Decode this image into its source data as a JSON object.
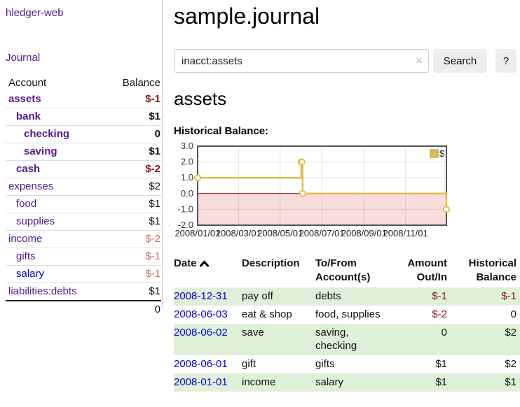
{
  "app": {
    "brand": "hledger-web",
    "nav_journal": "Journal"
  },
  "sidebar": {
    "headers": {
      "account": "Account",
      "balance": "Balance"
    },
    "accounts": [
      {
        "name": "assets",
        "indent": 1,
        "bold": true,
        "name_color": "purple",
        "balance": "$-1",
        "balance_color": "neg"
      },
      {
        "name": "bank",
        "indent": 2,
        "bold": true,
        "name_color": "purple",
        "balance": "$1",
        "balance_color": "black"
      },
      {
        "name": "checking",
        "indent": 3,
        "bold": true,
        "name_color": "purple",
        "balance": "0",
        "balance_color": "black"
      },
      {
        "name": "saving",
        "indent": 3,
        "bold": true,
        "name_color": "purple",
        "balance": "$1",
        "balance_color": "black"
      },
      {
        "name": "cash",
        "indent": 2,
        "bold": true,
        "name_color": "purple",
        "balance": "$-2",
        "balance_color": "neg"
      },
      {
        "name": "expenses",
        "indent": 1,
        "bold": false,
        "name_color": "purple",
        "balance": "$2",
        "balance_color": "black"
      },
      {
        "name": "food",
        "indent": 2,
        "bold": false,
        "name_color": "purple",
        "balance": "$1",
        "balance_color": "black"
      },
      {
        "name": "supplies",
        "indent": 2,
        "bold": false,
        "name_color": "purple",
        "balance": "$1",
        "balance_color": "black"
      },
      {
        "name": "income",
        "indent": 1,
        "bold": false,
        "name_color": "purple",
        "balance": "$-2",
        "balance_color": "negmuted"
      },
      {
        "name": "gifts",
        "indent": 2,
        "bold": false,
        "name_color": "purple",
        "balance": "$-1",
        "balance_color": "negmuted"
      },
      {
        "name": "salary",
        "indent": 2,
        "bold": false,
        "name_color": "blue",
        "balance": "$-1",
        "balance_color": "negmuted"
      },
      {
        "name": "liabilities:debts",
        "indent": 1,
        "bold": false,
        "name_color": "purple",
        "balance": "$1",
        "balance_color": "black"
      }
    ],
    "total": "0"
  },
  "header": {
    "title": "sample.journal"
  },
  "search": {
    "value": "inacct:assets",
    "clear_icon": "×",
    "button": "Search",
    "help_button": "?"
  },
  "account_page": {
    "heading": "assets",
    "chart_label": "Historical Balance:"
  },
  "chart_data": {
    "type": "line",
    "step": true,
    "title": "Historical Balance:",
    "legend": "$",
    "legend_position": "top-right",
    "x_range": [
      "2008-01-01",
      "2008-12-31"
    ],
    "x_ticks": [
      "2008/01/01",
      "2008/03/01",
      "2008/05/01",
      "2008/07/01",
      "2008/09/01",
      "2008/11/01"
    ],
    "y_ticks": [
      3.0,
      2.0,
      1.0,
      0.0,
      -1.0,
      -2.0
    ],
    "ylim": [
      -2,
      3
    ],
    "grid": true,
    "series": [
      {
        "name": "$",
        "color": "#e2bd4c",
        "points": [
          {
            "date": "2008-01-01",
            "value": 1
          },
          {
            "date": "2008-06-01",
            "value": 2
          },
          {
            "date": "2008-06-02",
            "value": 2
          },
          {
            "date": "2008-06-03",
            "value": 0
          },
          {
            "date": "2008-12-31",
            "value": -1
          }
        ]
      }
    ],
    "negative_region_color": "#f9dcdc",
    "zero_line_color": "#8b0000",
    "border_color": "#545454"
  },
  "register": {
    "columns": [
      {
        "line1": "Date",
        "line2": ""
      },
      {
        "line1": "Description",
        "line2": ""
      },
      {
        "line1": "To/From",
        "line2": "Account(s)"
      },
      {
        "line1": "Amount",
        "line2": "Out/In"
      },
      {
        "line1": "Historical",
        "line2": "Balance"
      }
    ],
    "sort_icon": "chevron-up",
    "rows": [
      {
        "date": "2008-12-31",
        "description": "pay off",
        "accounts": "debts",
        "amount": "$-1",
        "amount_color": "neg",
        "balance": "$-1",
        "balance_color": "neg",
        "shade": true
      },
      {
        "date": "2008-06-03",
        "description": "eat & shop",
        "accounts": "food, supplies",
        "amount": "$-2",
        "amount_color": "neg",
        "balance": "0",
        "balance_color": "black",
        "shade": false
      },
      {
        "date": "2008-06-02",
        "description": "save",
        "accounts": "saving, checking",
        "amount": "0",
        "amount_color": "black",
        "balance": "$2",
        "balance_color": "black",
        "shade": true
      },
      {
        "date": "2008-06-01",
        "description": "gift",
        "accounts": "gifts",
        "amount": "$1",
        "amount_color": "black",
        "balance": "$2",
        "balance_color": "black",
        "shade": false
      },
      {
        "date": "2008-01-01",
        "description": "income",
        "accounts": "salary",
        "amount": "$1",
        "amount_color": "black",
        "balance": "$1",
        "balance_color": "black",
        "shade": true
      }
    ]
  }
}
